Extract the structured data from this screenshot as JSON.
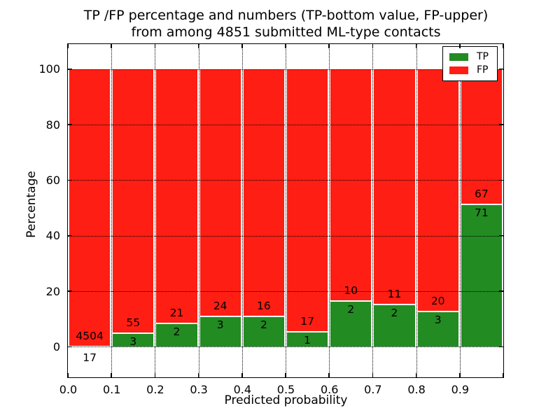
{
  "chart_data": {
    "type": "bar",
    "stacked": true,
    "title_lines": [
      "TP /FP percentage and numbers (TP-bottom value, FP-upper)",
      "from among 4851 submitted ML-type contacts"
    ],
    "title": "TP /FP percentage and numbers (TP-bottom value, FP-upper)\nfrom among 4851 submitted ML-type contacts",
    "xlabel": "Predicted probability",
    "ylabel": "Percentage",
    "xlim": [
      0.0,
      1.0
    ],
    "ylim": [
      -11,
      109
    ],
    "x_ticks": [
      "0.0",
      "0.1",
      "0.2",
      "0.3",
      "0.4",
      "0.5",
      "0.6",
      "0.7",
      "0.8",
      "0.9"
    ],
    "y_ticks": [
      "0",
      "20",
      "40",
      "60",
      "80",
      "100"
    ],
    "y_tick_values": [
      0,
      20,
      40,
      60,
      80,
      100
    ],
    "grid": "dotted",
    "legend_position": "upper right",
    "colors": {
      "tp": "#228b22",
      "fp": "#ff1e14",
      "edge": "#ffffff",
      "grid": "#000000",
      "text": "#000000"
    },
    "legend": [
      {
        "label": "TP",
        "color_key": "tp"
      },
      {
        "label": "FP",
        "color_key": "fp"
      }
    ],
    "bins": [
      {
        "x_range": [
          0.0,
          0.1
        ],
        "tp_count": 17,
        "fp_count": 4504,
        "tp_pct": 0.38,
        "fp_pct": 99.62,
        "tp_label_below_axis": true
      },
      {
        "x_range": [
          0.1,
          0.2
        ],
        "tp_count": 3,
        "fp_count": 55,
        "tp_pct": 5.17,
        "fp_pct": 94.83
      },
      {
        "x_range": [
          0.2,
          0.3
        ],
        "tp_count": 2,
        "fp_count": 21,
        "tp_pct": 8.7,
        "fp_pct": 91.3
      },
      {
        "x_range": [
          0.3,
          0.4
        ],
        "tp_count": 3,
        "fp_count": 24,
        "tp_pct": 11.11,
        "fp_pct": 88.89
      },
      {
        "x_range": [
          0.4,
          0.5
        ],
        "tp_count": 2,
        "fp_count": 16,
        "tp_pct": 11.11,
        "fp_pct": 88.89
      },
      {
        "x_range": [
          0.5,
          0.6
        ],
        "tp_count": 1,
        "fp_count": 17,
        "tp_pct": 5.56,
        "fp_pct": 94.44
      },
      {
        "x_range": [
          0.6,
          0.7
        ],
        "tp_count": 2,
        "fp_count": 10,
        "tp_pct": 16.67,
        "fp_pct": 83.33
      },
      {
        "x_range": [
          0.7,
          0.8
        ],
        "tp_count": 2,
        "fp_count": 11,
        "tp_pct": 15.38,
        "fp_pct": 84.62
      },
      {
        "x_range": [
          0.8,
          0.9
        ],
        "tp_count": 3,
        "fp_count": 20,
        "tp_pct": 13.04,
        "fp_pct": 86.96
      },
      {
        "x_range": [
          0.9,
          1.0
        ],
        "tp_count": 71,
        "fp_count": 67,
        "tp_pct": 51.45,
        "fp_pct": 48.55
      }
    ]
  }
}
